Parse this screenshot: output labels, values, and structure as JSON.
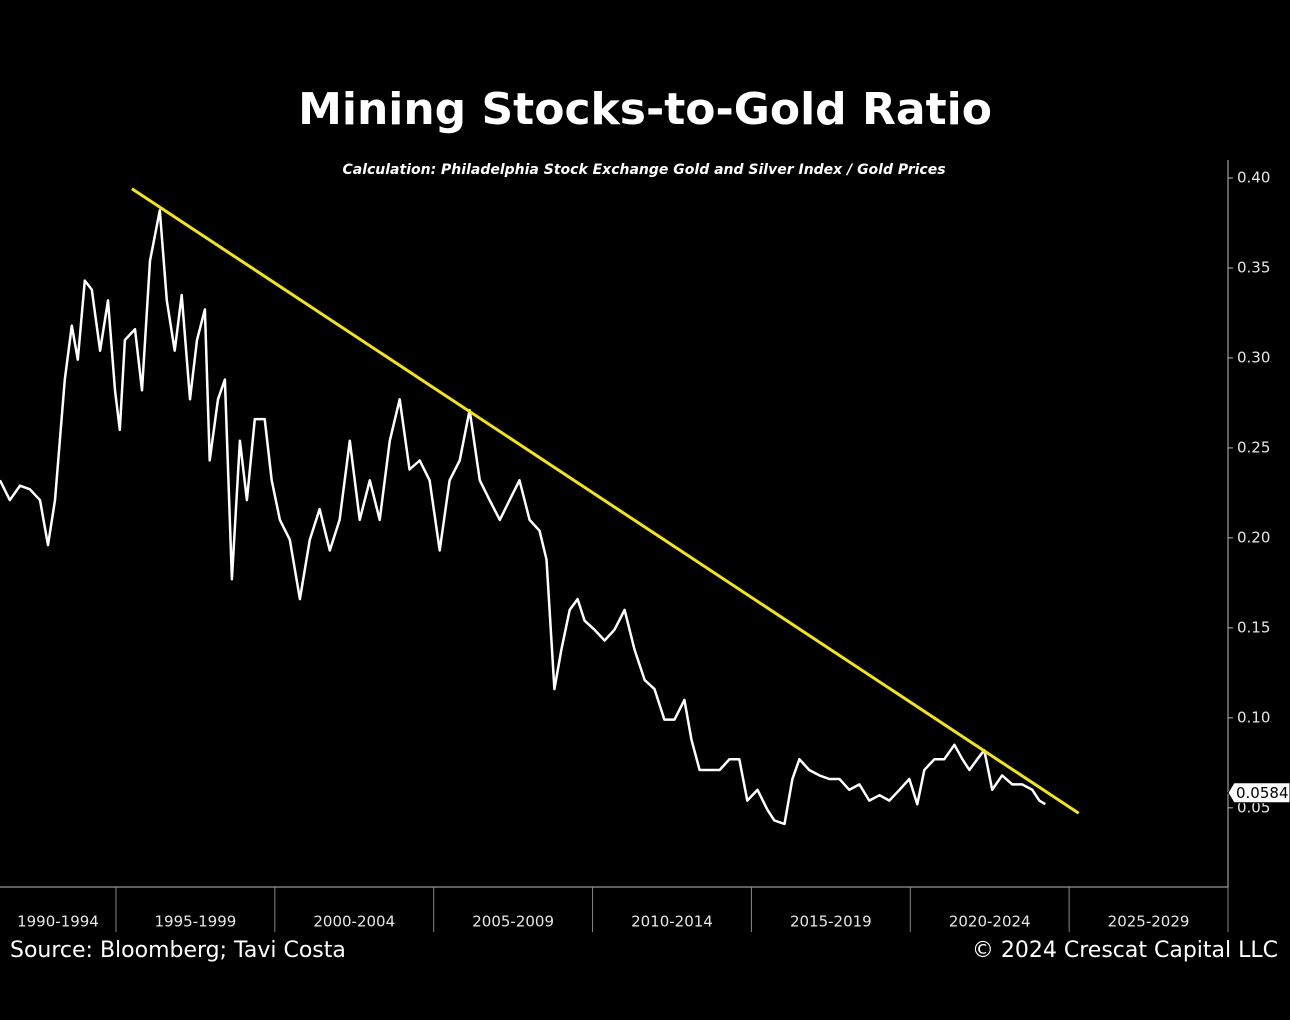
{
  "chart_data": {
    "type": "line",
    "title": "Mining Stocks-to-Gold Ratio",
    "subtitle": "Calculation: Philadelphia Stock Exchange Gold and Silver Index / Gold Prices",
    "source": "Source: Bloomberg; Tavi Costa",
    "copyright": "© 2024 Crescat Capital LLC",
    "categories": [
      "1990-1994",
      "1995-1999",
      "2000-2004",
      "2005-2009",
      "2010-2014",
      "2015-2019",
      "2020-2024",
      "2025-2029"
    ],
    "category_starts": [
      1990,
      1995,
      2000,
      2005,
      2010,
      2015,
      2020,
      2025
    ],
    "xticks": [
      1995,
      2000,
      2005,
      2010,
      2015,
      2020,
      2025,
      2030
    ],
    "xlim": [
      1991.35,
      2030
    ],
    "ylim": [
      0.006,
      0.41
    ],
    "yticks": [
      {
        "value": 0.4,
        "label": "0.40"
      },
      0.35,
      {
        "value": 0.3,
        "label": "0.30"
      },
      0.25,
      {
        "value": 0.2,
        "label": "0.20"
      },
      0.15,
      {
        "value": 0.1,
        "label": "0.10"
      },
      0.05
    ],
    "current_value": 0.0584,
    "series": [
      {
        "name": "Mining Stocks-to-Gold Ratio",
        "color": "#ffffff",
        "x": [
          1991.35,
          1991.66,
          1991.98,
          1992.29,
          1992.61,
          1992.86,
          1993.08,
          1993.39,
          1993.61,
          1993.8,
          1994.02,
          1994.24,
          1994.5,
          1994.75,
          1994.97,
          1995.12,
          1995.28,
          1995.6,
          1995.82,
          1996.07,
          1996.38,
          1996.6,
          1996.85,
          1997.07,
          1997.33,
          1997.55,
          1997.8,
          1997.95,
          1998.21,
          1998.43,
          1998.65,
          1998.9,
          1999.12,
          1999.37,
          1999.68,
          1999.9,
          2000.16,
          2000.47,
          2000.79,
          2001.1,
          2001.41,
          2001.73,
          2002.04,
          2002.36,
          2002.67,
          2002.99,
          2003.3,
          2003.62,
          2003.93,
          2004.24,
          2004.56,
          2004.87,
          2005.19,
          2005.5,
          2005.82,
          2006.13,
          2006.45,
          2006.76,
          2007.08,
          2007.39,
          2007.7,
          2008.02,
          2008.33,
          2008.55,
          2008.8,
          2009.02,
          2009.28,
          2009.53,
          2009.75,
          2010.06,
          2010.38,
          2010.69,
          2011.01,
          2011.32,
          2011.64,
          2011.95,
          2012.26,
          2012.58,
          2012.89,
          2013.11,
          2013.37,
          2013.68,
          2014.0,
          2014.31,
          2014.62,
          2014.87,
          2015.19,
          2015.5,
          2015.72,
          2016.04,
          2016.29,
          2016.51,
          2016.82,
          2017.14,
          2017.45,
          2017.77,
          2018.08,
          2018.4,
          2018.71,
          2019.03,
          2019.34,
          2019.66,
          2019.97,
          2020.22,
          2020.44,
          2020.76,
          2021.07,
          2021.39,
          2021.64,
          2021.86,
          2022.11,
          2022.33,
          2022.58,
          2022.89,
          2023.21,
          2023.52,
          2023.84,
          2024.06,
          2024.25
        ],
        "values": [
          0.232,
          0.221,
          0.229,
          0.227,
          0.221,
          0.196,
          0.221,
          0.288,
          0.318,
          0.299,
          0.343,
          0.338,
          0.304,
          0.332,
          0.282,
          0.26,
          0.31,
          0.316,
          0.282,
          0.354,
          0.382,
          0.332,
          0.304,
          0.335,
          0.277,
          0.31,
          0.327,
          0.243,
          0.277,
          0.288,
          0.177,
          0.254,
          0.221,
          0.266,
          0.266,
          0.232,
          0.21,
          0.199,
          0.166,
          0.199,
          0.216,
          0.193,
          0.21,
          0.254,
          0.21,
          0.232,
          0.21,
          0.254,
          0.277,
          0.238,
          0.243,
          0.232,
          0.193,
          0.232,
          0.243,
          0.271,
          0.232,
          0.221,
          0.21,
          0.221,
          0.232,
          0.21,
          0.204,
          0.188,
          0.116,
          0.138,
          0.16,
          0.166,
          0.154,
          0.149,
          0.143,
          0.149,
          0.16,
          0.138,
          0.121,
          0.116,
          0.099,
          0.099,
          0.11,
          0.088,
          0.071,
          0.071,
          0.071,
          0.077,
          0.077,
          0.054,
          0.06,
          0.049,
          0.043,
          0.041,
          0.066,
          0.077,
          0.071,
          0.068,
          0.066,
          0.066,
          0.06,
          0.063,
          0.054,
          0.057,
          0.054,
          0.06,
          0.066,
          0.052,
          0.071,
          0.077,
          0.077,
          0.085,
          0.077,
          0.071,
          0.077,
          0.082,
          0.06,
          0.068,
          0.063,
          0.063,
          0.06,
          0.054,
          0.052
        ]
      },
      {
        "name": "Trendline",
        "color": "#f2e31a",
        "x": [
          1995.5,
          2025.3
        ],
        "values": [
          0.394,
          0.047
        ]
      }
    ]
  }
}
